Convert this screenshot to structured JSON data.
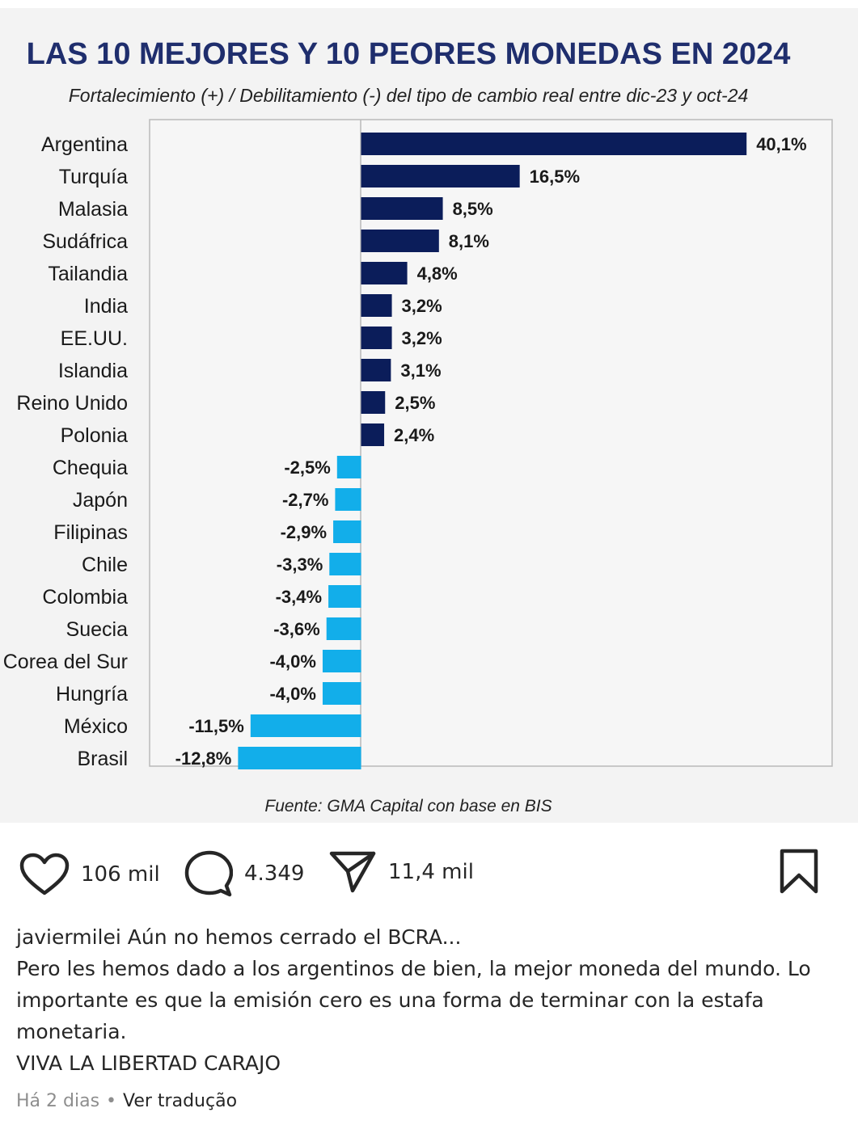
{
  "chart_data": {
    "type": "bar",
    "orientation": "horizontal",
    "title": "LAS 10 MEJORES Y 10 PEORES MONEDAS EN 2024",
    "subtitle": "Fortalecimiento (+) / Debilitamiento (-) del tipo de cambio real entre dic-23 y oct-24",
    "source": "Fuente: GMA Capital con base en BIS",
    "categories": [
      "Argentina",
      "Turquía",
      "Malasia",
      "Sudáfrica",
      "Tailandia",
      "India",
      "EE.UU.",
      "Islandia",
      "Reino Unido",
      "Polonia",
      "Chequia",
      "Japón",
      "Filipinas",
      "Chile",
      "Colombia",
      "Suecia",
      "Corea del Sur",
      "Hungría",
      "México",
      "Brasil"
    ],
    "values": [
      40.1,
      16.5,
      8.5,
      8.1,
      4.8,
      3.2,
      3.2,
      3.1,
      2.5,
      2.4,
      -2.5,
      -2.7,
      -2.9,
      -3.3,
      -3.4,
      -3.6,
      -4.0,
      -4.0,
      -11.5,
      -12.8
    ],
    "value_labels": [
      "40,1%",
      "16,5%",
      "8,5%",
      "8,1%",
      "4,8%",
      "3,2%",
      "3,2%",
      "3,1%",
      "2,5%",
      "2,4%",
      "-2,5%",
      "-2,7%",
      "-2,9%",
      "-3,3%",
      "-3,4%",
      "-3,6%",
      "-4,0%",
      "-4,0%",
      "-11,5%",
      "-12,8%"
    ],
    "xlim": [
      -22,
      49
    ],
    "colors": {
      "positive": "#0b1d5a",
      "negative": "#12aeea"
    },
    "legend": "none",
    "grid": false
  },
  "post": {
    "likes": "106 mil",
    "comments": "4.349",
    "shares": "11,4 mil",
    "username": "javiermilei",
    "caption_first": "Aún no hemos cerrado el BCRA...",
    "caption_lines": [
      "Pero les hemos dado a los argentinos de bien, la mejor moneda del mundo. Lo importante es que la emisión cero es una forma de terminar con la estafa monetaria.",
      "VIVA LA LIBERTAD CARAJO"
    ],
    "time_ago": "Há 2 dias",
    "translate_label": "Ver tradução",
    "icons": {
      "like": "heart-icon",
      "comment": "comment-icon",
      "share": "send-icon",
      "save": "bookmark-icon"
    }
  }
}
